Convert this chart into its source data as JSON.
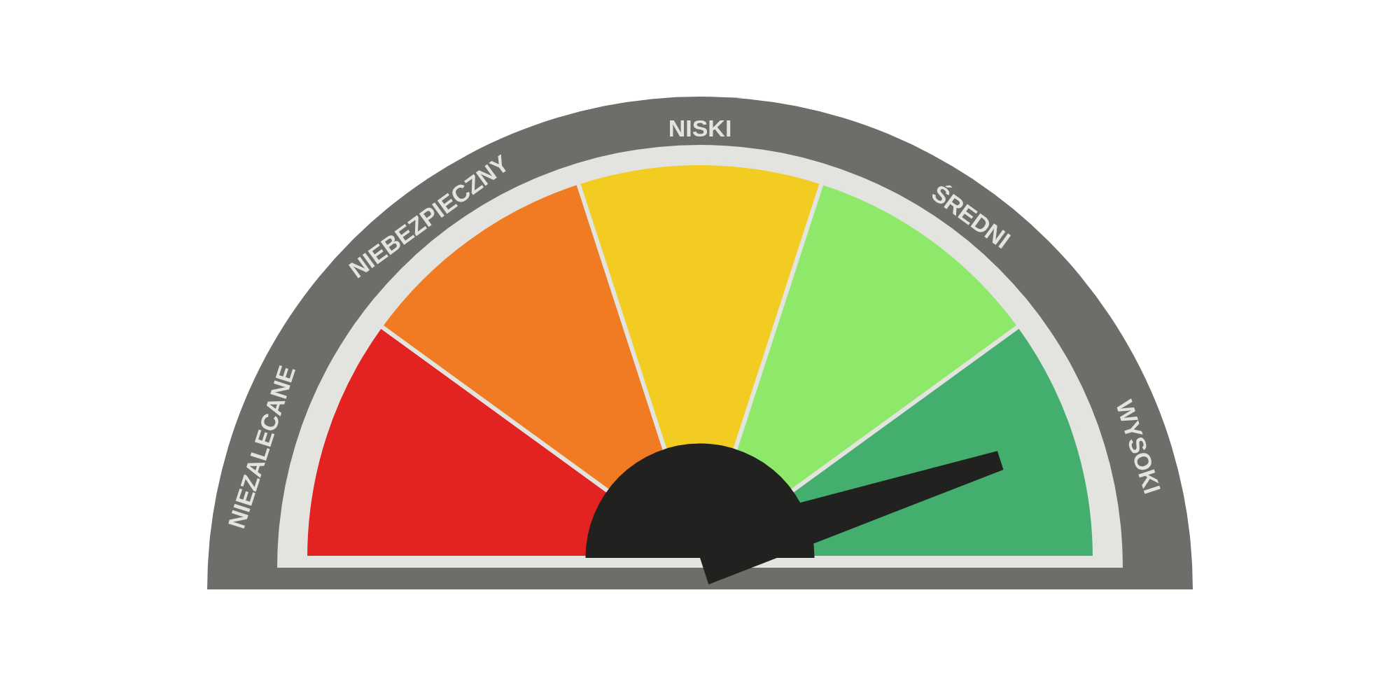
{
  "chart_data": {
    "type": "pie",
    "categories": [
      "NIEZALECANE",
      "NIEBEZPIECZNY",
      "NISKI",
      "ŚREDNI",
      "WYSOKI"
    ],
    "values": [
      20,
      20,
      20,
      20,
      20
    ],
    "colors": [
      "#e32222",
      "#f07b22",
      "#f3cc22",
      "#8ee96a",
      "#43ae6e"
    ],
    "needle": "WYSOKI"
  }
}
